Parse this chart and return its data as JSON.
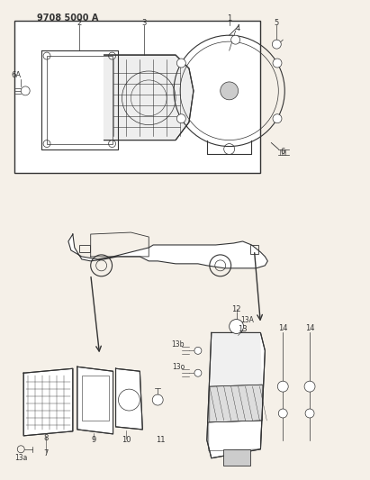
{
  "title": "9708 5000 A",
  "bg_color": "#f5f0e8",
  "line_color": "#333333",
  "box_bg": "#ffffff",
  "fig_width": 4.11,
  "fig_height": 5.33,
  "dpi": 100,
  "part_labels": {
    "top_box": [
      "1",
      "2",
      "3",
      "4",
      "5",
      "6",
      "6A"
    ],
    "bottom_left": [
      "7",
      "8",
      "9",
      "10",
      "11",
      "13a"
    ],
    "bottom_right": [
      "12",
      "13",
      "13A",
      "13b",
      "14"
    ]
  }
}
